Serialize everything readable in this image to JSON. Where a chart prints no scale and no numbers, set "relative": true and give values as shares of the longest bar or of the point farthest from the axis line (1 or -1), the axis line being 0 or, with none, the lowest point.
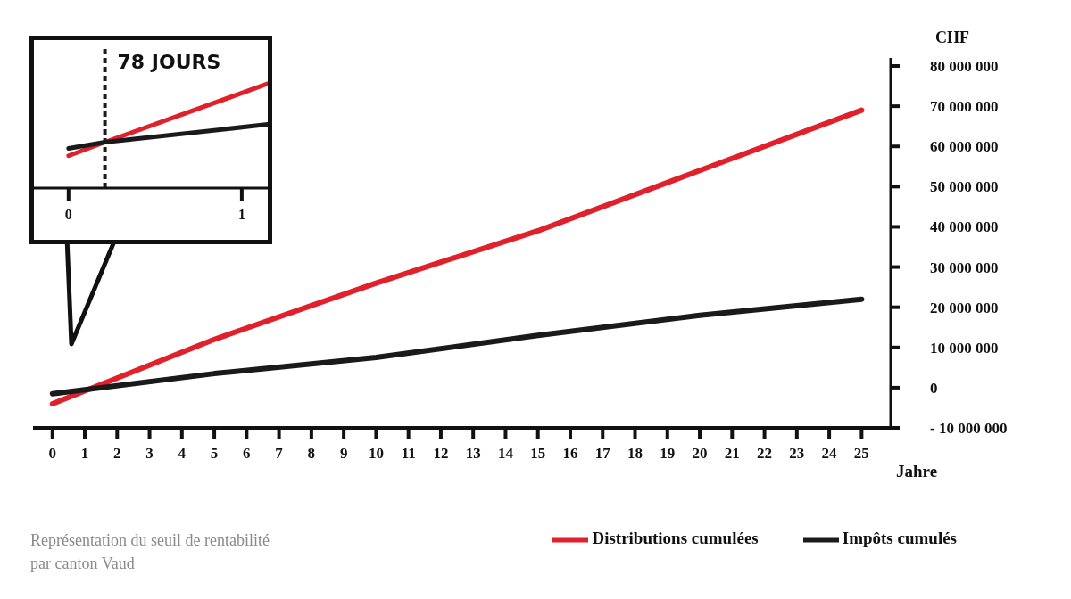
{
  "chart_data": [
    {
      "type": "line",
      "xlabel": "Jahre",
      "ylabel": "CHF",
      "x": [
        0,
        5,
        10,
        15,
        20,
        25
      ],
      "series": [
        {
          "name": "Distributions cumulées",
          "color": "#e0202a",
          "values": [
            -4000000,
            12000000,
            26000000,
            39000000,
            54000000,
            69000000
          ]
        },
        {
          "name": "Impôts cumulés",
          "color": "#1a1a1a",
          "values": [
            -1500000,
            3500000,
            7500000,
            13000000,
            18000000,
            22000000
          ]
        }
      ],
      "xlim": [
        -0.6,
        25.9
      ],
      "xticks": [
        0,
        1,
        2,
        3,
        4,
        5,
        6,
        7,
        8,
        9,
        10,
        11,
        12,
        13,
        14,
        15,
        16,
        17,
        18,
        19,
        20,
        21,
        22,
        23,
        24,
        25
      ],
      "ylim": [
        -10000000,
        82000000
      ],
      "yticks": [
        {
          "value": -10000000,
          "label": "- 10 000 000"
        },
        0,
        {
          "value": 10000000,
          "label": "10 000 000"
        },
        {
          "value": 20000000,
          "label": "20 000 000"
        },
        {
          "value": 30000000,
          "label": "30 000 000"
        },
        {
          "value": 40000000,
          "label": "40 000 000"
        },
        {
          "value": 50000000,
          "label": "50 000 000"
        },
        {
          "value": 60000000,
          "label": "60 000 000"
        },
        {
          "value": 70000000,
          "label": "70 000 000"
        },
        {
          "value": 80000000,
          "label": "80 000 000"
        }
      ],
      "legend": "bottom right",
      "marker": "none",
      "line_style": "solid",
      "annotations": [
        "Représentation du seuil de rentabilité par canton Vaud"
      ]
    },
    {
      "type": "line",
      "relative": true,
      "x": [
        0,
        0.21,
        1.15
      ],
      "series": [
        {
          "color": "#e0202a",
          "values": [
            0.31,
            0.44,
            1.0
          ]
        },
        {
          "color": "#1a1a1a",
          "values": [
            0.38,
            0.44,
            0.61
          ]
        }
      ],
      "xlim": [
        -0.2,
        1.15
      ],
      "xticks": [
        0,
        1
      ],
      "tick_labels": "x",
      "marker": "none",
      "line_style": "solid",
      "ref_lines": [
        {
          "axis": "x",
          "value": 0.21,
          "label": "78 JOURS",
          "color": "#1a1a1a",
          "line_style": "dashed"
        }
      ]
    }
  ]
}
